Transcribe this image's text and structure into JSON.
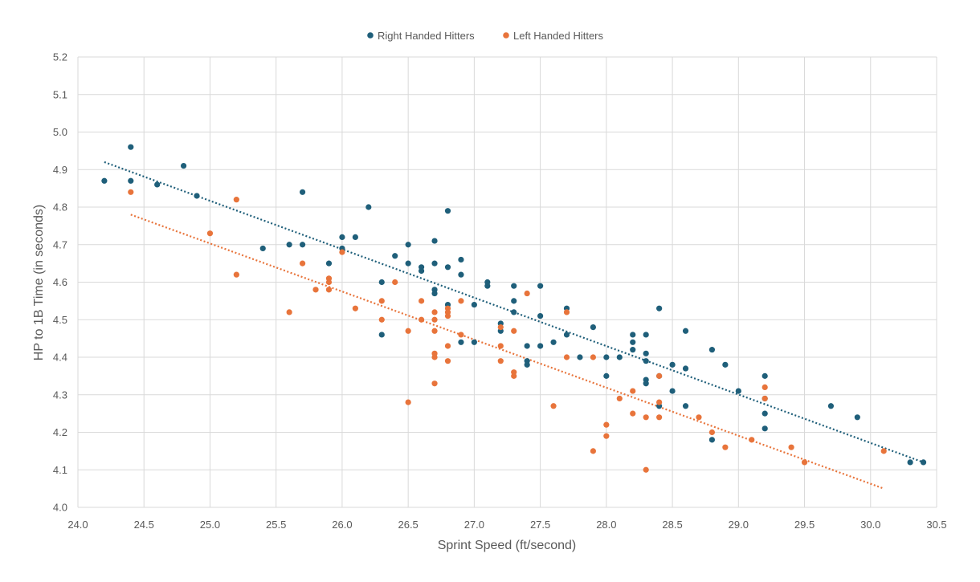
{
  "chart_data": {
    "type": "scatter",
    "title": "",
    "xlabel": "Sprint Speed (ft/second)",
    "ylabel": "HP to 1B Time (in seconds)",
    "xlim": [
      24.0,
      30.5
    ],
    "ylim": [
      4.0,
      5.2
    ],
    "x_ticks": [
      "24.0",
      "24.5",
      "25.0",
      "25.5",
      "26.0",
      "26.5",
      "27.0",
      "27.5",
      "28.0",
      "28.5",
      "29.0",
      "29.5",
      "30.0",
      "30.5"
    ],
    "y_ticks": [
      "4.0",
      "4.1",
      "4.2",
      "4.3",
      "4.4",
      "4.5",
      "4.6",
      "4.7",
      "4.8",
      "4.9",
      "5.0",
      "5.1",
      "5.2"
    ],
    "grid": true,
    "legend_position": "top-center",
    "series": [
      {
        "name": "Right Handed Hitters",
        "color": "#1f5f7a",
        "points": [
          [
            24.2,
            4.87
          ],
          [
            24.4,
            4.96
          ],
          [
            24.4,
            4.87
          ],
          [
            24.6,
            4.86
          ],
          [
            24.8,
            4.91
          ],
          [
            24.9,
            4.83
          ],
          [
            25.4,
            4.69
          ],
          [
            25.6,
            4.7
          ],
          [
            25.7,
            4.84
          ],
          [
            25.7,
            4.7
          ],
          [
            25.9,
            4.65
          ],
          [
            26.0,
            4.72
          ],
          [
            26.0,
            4.69
          ],
          [
            26.1,
            4.72
          ],
          [
            26.2,
            4.8
          ],
          [
            26.3,
            4.6
          ],
          [
            26.3,
            4.46
          ],
          [
            26.4,
            4.67
          ],
          [
            26.5,
            4.7
          ],
          [
            26.5,
            4.65
          ],
          [
            26.6,
            4.64
          ],
          [
            26.6,
            4.63
          ],
          [
            26.7,
            4.71
          ],
          [
            26.7,
            4.65
          ],
          [
            26.7,
            4.58
          ],
          [
            26.7,
            4.57
          ],
          [
            26.8,
            4.79
          ],
          [
            26.8,
            4.64
          ],
          [
            26.8,
            4.54
          ],
          [
            26.9,
            4.66
          ],
          [
            26.9,
            4.62
          ],
          [
            26.9,
            4.44
          ],
          [
            27.0,
            4.54
          ],
          [
            27.0,
            4.44
          ],
          [
            27.1,
            4.6
          ],
          [
            27.1,
            4.59
          ],
          [
            27.2,
            4.49
          ],
          [
            27.2,
            4.47
          ],
          [
            27.3,
            4.59
          ],
          [
            27.3,
            4.55
          ],
          [
            27.3,
            4.52
          ],
          [
            27.4,
            4.43
          ],
          [
            27.4,
            4.38
          ],
          [
            27.4,
            4.39
          ],
          [
            27.5,
            4.59
          ],
          [
            27.5,
            4.51
          ],
          [
            27.5,
            4.43
          ],
          [
            27.6,
            4.44
          ],
          [
            27.7,
            4.53
          ],
          [
            27.7,
            4.46
          ],
          [
            27.8,
            4.4
          ],
          [
            27.9,
            4.48
          ],
          [
            28.0,
            4.4
          ],
          [
            28.0,
            4.35
          ],
          [
            28.1,
            4.4
          ],
          [
            28.2,
            4.46
          ],
          [
            28.2,
            4.44
          ],
          [
            28.2,
            4.42
          ],
          [
            28.3,
            4.46
          ],
          [
            28.3,
            4.41
          ],
          [
            28.3,
            4.39
          ],
          [
            28.3,
            4.34
          ],
          [
            28.3,
            4.33
          ],
          [
            28.4,
            4.53
          ],
          [
            28.4,
            4.35
          ],
          [
            28.4,
            4.27
          ],
          [
            28.5,
            4.38
          ],
          [
            28.5,
            4.31
          ],
          [
            28.6,
            4.47
          ],
          [
            28.6,
            4.37
          ],
          [
            28.6,
            4.27
          ],
          [
            28.8,
            4.42
          ],
          [
            28.8,
            4.18
          ],
          [
            28.9,
            4.38
          ],
          [
            29.0,
            4.31
          ],
          [
            29.2,
            4.35
          ],
          [
            29.2,
            4.29
          ],
          [
            29.2,
            4.25
          ],
          [
            29.2,
            4.21
          ],
          [
            29.7,
            4.27
          ],
          [
            29.9,
            4.24
          ],
          [
            30.3,
            4.12
          ],
          [
            30.4,
            4.12
          ]
        ],
        "trendline": {
          "style": "dotted",
          "from": [
            24.2,
            4.92
          ],
          "to": [
            30.4,
            4.12
          ]
        }
      },
      {
        "name": "Left Handed Hitters",
        "color": "#e8743b",
        "points": [
          [
            24.4,
            4.84
          ],
          [
            25.0,
            4.73
          ],
          [
            25.2,
            4.82
          ],
          [
            25.2,
            4.62
          ],
          [
            25.6,
            4.52
          ],
          [
            25.7,
            4.65
          ],
          [
            25.8,
            4.58
          ],
          [
            25.9,
            4.61
          ],
          [
            25.9,
            4.6
          ],
          [
            25.9,
            4.58
          ],
          [
            26.0,
            4.68
          ],
          [
            26.1,
            4.53
          ],
          [
            26.3,
            4.55
          ],
          [
            26.3,
            4.5
          ],
          [
            26.4,
            4.6
          ],
          [
            26.5,
            4.47
          ],
          [
            26.5,
            4.28
          ],
          [
            26.6,
            4.55
          ],
          [
            26.6,
            4.5
          ],
          [
            26.7,
            4.52
          ],
          [
            26.7,
            4.5
          ],
          [
            26.7,
            4.47
          ],
          [
            26.7,
            4.41
          ],
          [
            26.7,
            4.4
          ],
          [
            26.7,
            4.33
          ],
          [
            26.8,
            4.53
          ],
          [
            26.8,
            4.52
          ],
          [
            26.8,
            4.51
          ],
          [
            26.8,
            4.43
          ],
          [
            26.8,
            4.39
          ],
          [
            26.9,
            4.55
          ],
          [
            26.9,
            4.46
          ],
          [
            27.2,
            4.48
          ],
          [
            27.2,
            4.43
          ],
          [
            27.2,
            4.39
          ],
          [
            27.3,
            4.47
          ],
          [
            27.3,
            4.36
          ],
          [
            27.3,
            4.35
          ],
          [
            27.4,
            4.57
          ],
          [
            27.6,
            4.27
          ],
          [
            27.7,
            4.52
          ],
          [
            27.7,
            4.4
          ],
          [
            27.9,
            4.4
          ],
          [
            27.9,
            4.15
          ],
          [
            28.0,
            4.22
          ],
          [
            28.0,
            4.19
          ],
          [
            28.1,
            4.29
          ],
          [
            28.2,
            4.31
          ],
          [
            28.2,
            4.25
          ],
          [
            28.3,
            4.24
          ],
          [
            28.3,
            4.1
          ],
          [
            28.4,
            4.35
          ],
          [
            28.4,
            4.28
          ],
          [
            28.4,
            4.24
          ],
          [
            28.7,
            4.24
          ],
          [
            28.8,
            4.2
          ],
          [
            28.9,
            4.16
          ],
          [
            29.1,
            4.18
          ],
          [
            29.2,
            4.32
          ],
          [
            29.2,
            4.29
          ],
          [
            29.4,
            4.16
          ],
          [
            29.5,
            4.12
          ],
          [
            30.1,
            4.15
          ]
        ],
        "trendline": {
          "style": "dotted",
          "from": [
            24.4,
            4.78
          ],
          "to": [
            30.1,
            4.05
          ]
        }
      }
    ]
  }
}
